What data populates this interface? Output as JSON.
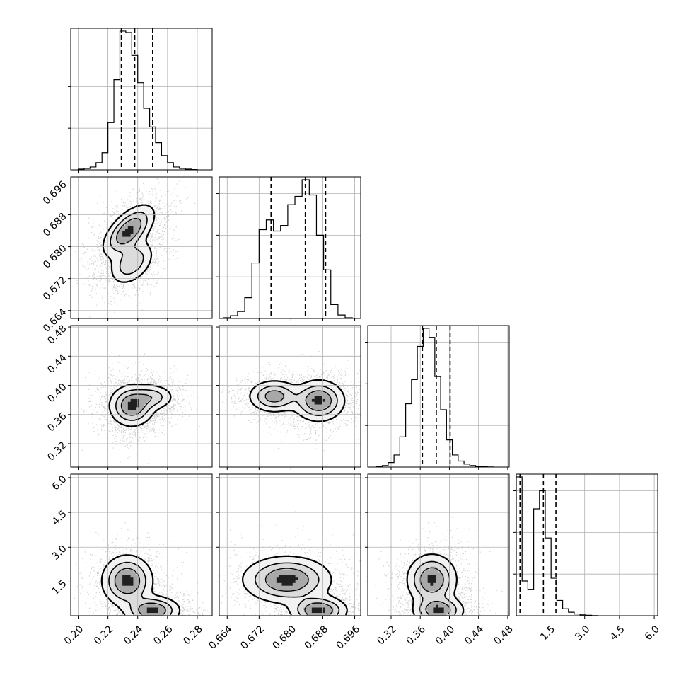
{
  "chart_data": {
    "type": "corner",
    "parameters": [
      {
        "range": [
          0.195,
          0.29
        ],
        "ticks": [
          0.2,
          0.22,
          0.24,
          0.26,
          0.28
        ],
        "tick_labels": [
          "0.20",
          "0.22",
          "0.24",
          "0.26",
          "0.28"
        ],
        "quantiles": [
          0.229,
          0.238,
          0.25
        ],
        "hist": {
          "bins": [
            0.2,
            0.204,
            0.208,
            0.212,
            0.216,
            0.22,
            0.224,
            0.228,
            0.232,
            0.236,
            0.24,
            0.244,
            0.248,
            0.252,
            0.256,
            0.26,
            0.264,
            0.268,
            0.272,
            0.276,
            0.28
          ],
          "counts": [
            0.5,
            1.0,
            2.0,
            5.0,
            12.0,
            33.0,
            63.0,
            97.0,
            96.0,
            80.0,
            61.0,
            43.0,
            30.0,
            19.0,
            10.0,
            5.0,
            2.0,
            1.0,
            0.5,
            0.2
          ]
        }
      },
      {
        "range": [
          0.662,
          0.6975
        ],
        "ticks": [
          0.664,
          0.672,
          0.68,
          0.688,
          0.696
        ],
        "tick_labels": [
          "0.664",
          "0.672",
          "0.680",
          "0.688",
          "0.696"
        ],
        "quantiles": [
          0.675,
          0.6836,
          0.6887
        ],
        "hist": {
          "bins": [
            0.663,
            0.6648,
            0.6666,
            0.6684,
            0.6702,
            0.672,
            0.6738,
            0.6756,
            0.6774,
            0.6792,
            0.681,
            0.6828,
            0.6846,
            0.6864,
            0.6882,
            0.69,
            0.6918,
            0.6936,
            0.6954
          ],
          "counts": [
            0.5,
            2.0,
            5.0,
            15.0,
            40.0,
            64.0,
            71.0,
            63.0,
            67.0,
            82.0,
            88.0,
            100.0,
            89.0,
            60.0,
            35.0,
            10.0,
            2.5,
            0.5
          ]
        }
      },
      {
        "range": [
          0.288,
          0.482
        ],
        "ticks": [
          0.32,
          0.36,
          0.4,
          0.44,
          0.48
        ],
        "tick_labels": [
          "0.32",
          "0.36",
          "0.40",
          "0.44",
          "0.48"
        ],
        "quantiles": [
          0.363,
          0.382,
          0.401
        ],
        "hist": {
          "bins": [
            0.3,
            0.308,
            0.316,
            0.324,
            0.332,
            0.34,
            0.348,
            0.356,
            0.364,
            0.372,
            0.38,
            0.388,
            0.396,
            0.404,
            0.412,
            0.42,
            0.428,
            0.436,
            0.444,
            0.452,
            0.46
          ],
          "counts": [
            0.5,
            1.0,
            3.0,
            8.0,
            20.0,
            42.0,
            58.0,
            80.0,
            92.0,
            86.0,
            60.0,
            38.0,
            18.0,
            8.0,
            4.0,
            2.0,
            1.0,
            0.5,
            0.2,
            0.1
          ]
        }
      },
      {
        "range": [
          0.05,
          6.15
        ],
        "ticks": [
          1.5,
          3.0,
          4.5,
          6.0
        ],
        "tick_labels": [
          "1.5",
          "3.0",
          "4.5",
          "6.0"
        ],
        "quantiles": [
          0.21,
          1.22,
          1.76
        ],
        "hist": {
          "bins": [
            0.05,
            0.3,
            0.55,
            0.8,
            1.05,
            1.3,
            1.55,
            1.8,
            2.05,
            2.3,
            2.55,
            2.8,
            3.05,
            3.3,
            3.55
          ],
          "counts": [
            100.0,
            25.0,
            19.0,
            77.0,
            90.0,
            56.0,
            27.0,
            11.0,
            5.0,
            2.5,
            1.2,
            0.6,
            0.3,
            0.1
          ]
        }
      }
    ],
    "pairs": [
      {
        "row": 1,
        "col": 0,
        "modes": [
          {
            "x": 0.234,
            "y": 0.684,
            "sx": 0.0085,
            "sy": 0.0032,
            "rho": 0.6,
            "w": 1.0
          },
          {
            "x": 0.236,
            "y": 0.676,
            "sx": 0.0075,
            "sy": 0.0028,
            "rho": 0.4,
            "w": 0.6
          }
        ]
      },
      {
        "row": 2,
        "col": 0,
        "modes": [
          {
            "x": 0.236,
            "y": 0.372,
            "sx": 0.0075,
            "sy": 0.014,
            "rho": 0.0,
            "w": 1.0
          },
          {
            "x": 0.25,
            "y": 0.384,
            "sx": 0.0075,
            "sy": 0.009,
            "rho": 0.0,
            "w": 0.5
          }
        ]
      },
      {
        "row": 2,
        "col": 1,
        "modes": [
          {
            "x": 0.6758,
            "y": 0.385,
            "sx": 0.0032,
            "sy": 0.011,
            "rho": 0.0,
            "w": 0.8
          },
          {
            "x": 0.687,
            "y": 0.379,
            "sx": 0.0032,
            "sy": 0.014,
            "rho": 0.0,
            "w": 1.0
          }
        ]
      },
      {
        "row": 3,
        "col": 0,
        "modes": [
          {
            "x": 0.233,
            "y": 1.55,
            "sx": 0.0085,
            "sy": 0.55,
            "rho": 0.0,
            "w": 1.0
          },
          {
            "x": 0.25,
            "y": 0.28,
            "sx": 0.009,
            "sy": 0.3,
            "rho": 0.0,
            "w": 1.0
          }
        ]
      },
      {
        "row": 3,
        "col": 1,
        "modes": [
          {
            "x": 0.679,
            "y": 1.6,
            "sx": 0.0055,
            "sy": 0.5,
            "rho": 0.0,
            "w": 1.0
          },
          {
            "x": 0.687,
            "y": 0.28,
            "sx": 0.0035,
            "sy": 0.3,
            "rho": 0.0,
            "w": 1.0
          }
        ]
      },
      {
        "row": 3,
        "col": 2,
        "modes": [
          {
            "x": 0.376,
            "y": 1.6,
            "sx": 0.017,
            "sy": 0.55,
            "rho": 0.0,
            "w": 1.0
          },
          {
            "x": 0.385,
            "y": 0.28,
            "sx": 0.017,
            "sy": 0.3,
            "rho": 0.0,
            "w": 1.0
          }
        ]
      }
    ]
  }
}
